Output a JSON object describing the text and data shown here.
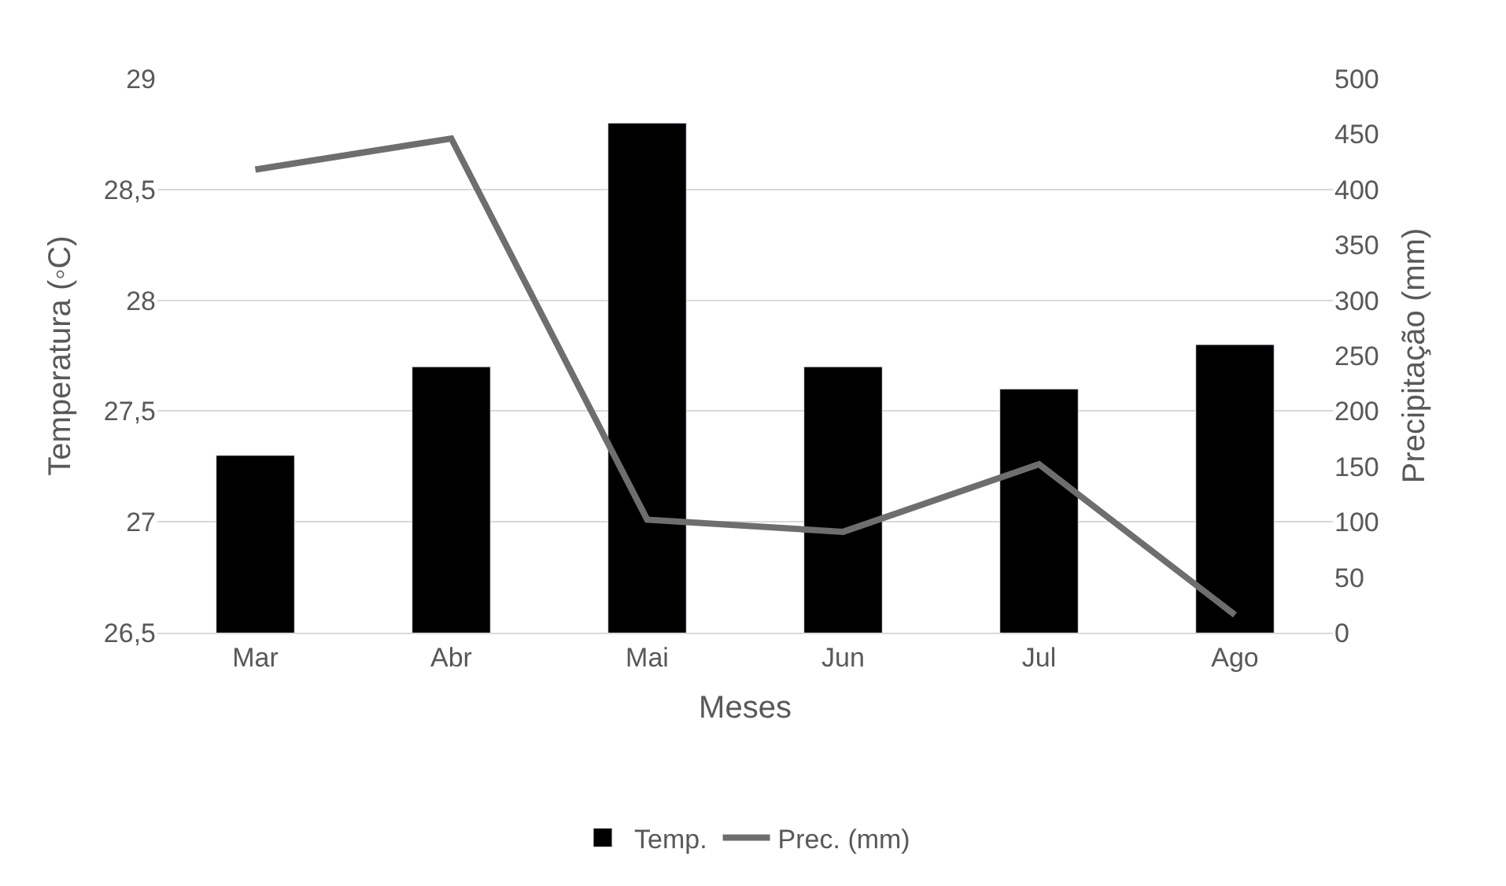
{
  "chart_data": {
    "type": "bar",
    "xlabel": "Meses",
    "ylabel": "Temperatura (◦C)",
    "y2label": "Precipitação (mm)",
    "categories": [
      "Mar",
      "Abr",
      "Mai",
      "Jun",
      "Jul",
      "Ago"
    ],
    "series": [
      {
        "name": "Temp.",
        "color": "#000000",
        "values": [
          27.3,
          27.7,
          28.8,
          27.7,
          27.6,
          27.8
        ]
      },
      {
        "name": "Prec. (mm)",
        "type": "line",
        "axis": "y2",
        "color": "#6e6e6e",
        "marker": "none",
        "values": [
          418,
          446,
          102,
          91,
          152,
          16
        ]
      }
    ],
    "ylim": [
      26.5,
      29
    ],
    "yticks": [
      {
        "value": 26.5,
        "label": "26,5"
      },
      27,
      {
        "value": 27.5,
        "label": "27,5"
      },
      28,
      {
        "value": 28.5,
        "label": "28,5"
      },
      29
    ],
    "y2lim": [
      0,
      500
    ],
    "y2ticks": [
      0,
      50,
      100,
      150,
      200,
      250,
      300,
      350,
      400,
      450,
      500
    ],
    "grid": "y",
    "legend": "bottom"
  }
}
